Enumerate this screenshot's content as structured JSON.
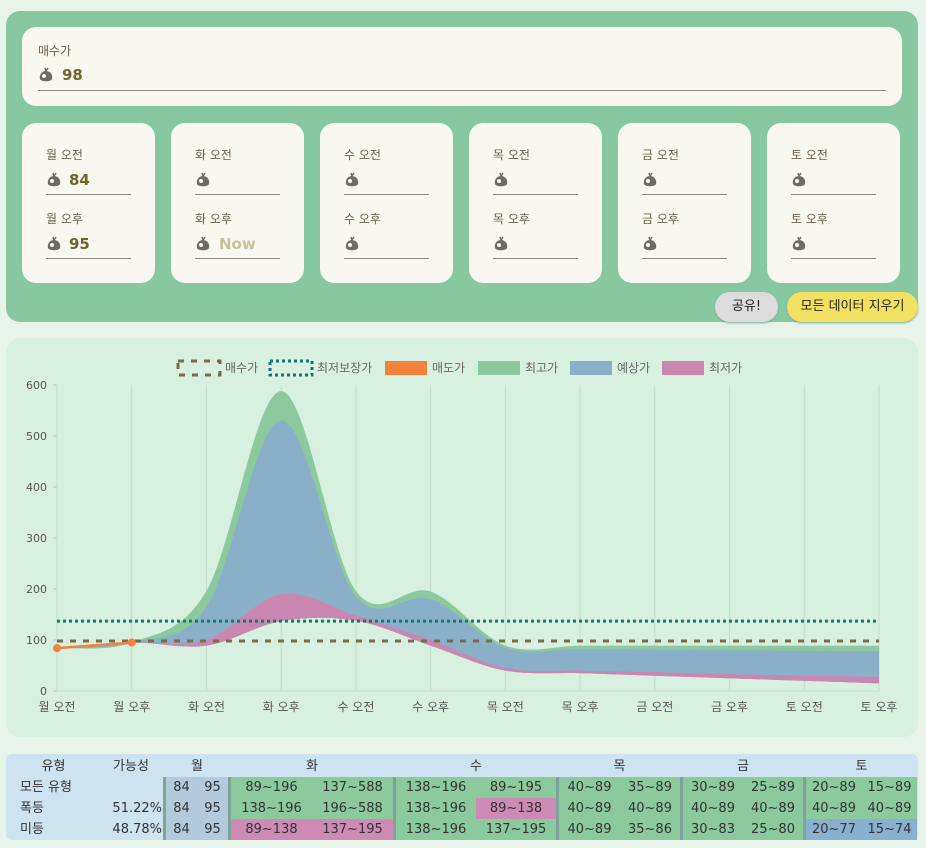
{
  "form": {
    "buy_label": "매수가",
    "buy_price": 98,
    "days": [
      {
        "am_label": "월 오전",
        "am": 84,
        "pm_label": "월 오후",
        "pm": 95
      },
      {
        "am_label": "화 오전",
        "pm_label": "화 오후",
        "pm_placeholder": "Now"
      },
      {
        "am_label": "수 오전",
        "pm_label": "수 오후"
      },
      {
        "am_label": "목 오전",
        "pm_label": "목 오후"
      },
      {
        "am_label": "금 오전",
        "pm_label": "금 오후"
      },
      {
        "am_label": "토 오전",
        "pm_label": "토 오후"
      }
    ],
    "buttons": [
      "공유!",
      "모든 데이터 지우기"
    ]
  },
  "chart_data": {
    "type": "area",
    "categories": [
      "월 오전",
      "월 오후",
      "화 오전",
      "화 오후",
      "수 오전",
      "수 오후",
      "목 오전",
      "목 오후",
      "금 오전",
      "금 오후",
      "토 오전",
      "토 오후"
    ],
    "ylim": [
      0,
      600
    ],
    "yticks": [
      0,
      100,
      200,
      300,
      400,
      500,
      600
    ],
    "grid": "x",
    "series": [
      {
        "name": "매수가",
        "color": "#7b6a4a",
        "style": "dashed",
        "value": 98
      },
      {
        "name": "최저보장가",
        "color": "#13786e",
        "style": "dotted",
        "value": 137
      },
      {
        "name": "매도가",
        "color": "#f0823c",
        "style": "line",
        "values": [
          84,
          95,
          null,
          null,
          null,
          null,
          null,
          null,
          null,
          null,
          null,
          null
        ]
      },
      {
        "name": "최고가",
        "color": "#8cc99d",
        "style": "band",
        "values": [
          84,
          95,
          196,
          588,
          196,
          195,
          89,
          89,
          89,
          89,
          89,
          89
        ]
      },
      {
        "name": "예상가",
        "color": "#8ab0c9",
        "style": "band",
        "values": [
          84,
          95,
          165,
          530,
          185,
          180,
          85,
          82,
          81,
          80,
          79,
          78
        ]
      },
      {
        "name": "최저가",
        "color": "#c986b0",
        "style": "band",
        "values": [
          84,
          95,
          100,
          190,
          148,
          100,
          45,
          40,
          37,
          33,
          30,
          28
        ],
        "low": [
          84,
          95,
          89,
          137,
          138,
          89,
          40,
          35,
          30,
          25,
          20,
          15
        ]
      }
    ]
  },
  "table": {
    "header": [
      "유형",
      "가능성",
      "월",
      "화",
      "수",
      "목",
      "금",
      "토"
    ],
    "rows": [
      {
        "label": "모든 유형",
        "probability": null,
        "prices": [
          84,
          95,
          "89~196",
          "137~588",
          "138~196",
          "89~195",
          "40~89",
          "35~89",
          "30~89",
          "25~89",
          "20~89",
          "15~89"
        ],
        "colors": [
          "#b3cadc",
          "#b3cadc",
          "#8cc99d",
          "#8cc99d",
          "#8cc99d",
          "#8cc99d",
          "#8cc99d",
          "#8cc99d",
          "#8cc99d",
          "#8cc99d",
          "#8cc99d",
          "#8cc99d"
        ]
      },
      {
        "label": "폭등",
        "probability": "51.22%",
        "prices": [
          84,
          95,
          "138~196",
          "196~588",
          "138~196",
          "89~138",
          "40~89",
          "40~89",
          "40~89",
          "40~89",
          "40~89",
          "40~89"
        ],
        "colors": [
          "#b3cadc",
          "#b3cadc",
          "#8cc99d",
          "#8cc99d",
          "#8cc99d",
          "#cc8ab4",
          "#8cc99d",
          "#8cc99d",
          "#8cc99d",
          "#8cc99d",
          "#8cc99d",
          "#8cc99d"
        ]
      },
      {
        "label": "미등",
        "probability": "48.78%",
        "prices": [
          84,
          95,
          "89~138",
          "137~195",
          "138~196",
          "137~195",
          "40~89",
          "35~86",
          "30~83",
          "25~80",
          "20~77",
          "15~74"
        ],
        "colors": [
          "#b3cadc",
          "#b3cadc",
          "#cc8ab4",
          "#cc8ab4",
          "#8cc99d",
          "#8cc99d",
          "#8cc99d",
          "#8cc99d",
          "#8cc99d",
          "#8cc99d",
          "#8ab0d0",
          "#8ab0d0"
        ]
      }
    ]
  }
}
